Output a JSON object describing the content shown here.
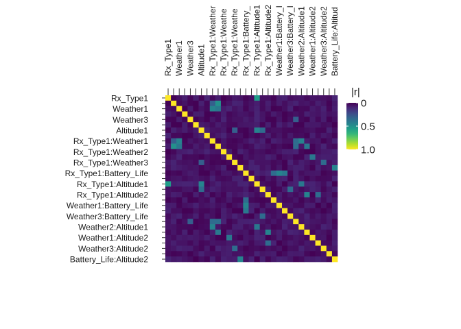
{
  "chart_data": {
    "type": "heatmap",
    "title": "",
    "xlabel": "",
    "ylabel": "",
    "row_labels": [
      "Rx_Type1",
      "",
      "Weather1",
      "",
      "Weather3",
      "",
      "Altitude1",
      "",
      "Rx_Type1:Weather1",
      "",
      "Rx_Type1:Weather2",
      "",
      "Rx_Type1:Weather3",
      "",
      "Rx_Type1:Battery_Life",
      "",
      "Rx_Type1:Altitude1",
      "",
      "Rx_Type1:Altitude2",
      "",
      "Weather1:Battery_Life",
      "",
      "Weather3:Battery_Life",
      "",
      "Weather2:Altitude1",
      "",
      "Weather1:Altitude2",
      "",
      "Weather3:Altitude2",
      "",
      "Battery_Life:Altitude2"
    ],
    "col_labels": [
      "Rx_Type1",
      "",
      "Weather1",
      "",
      "Weather3",
      "",
      "Altitude1",
      "",
      "Rx_Type1:Weather",
      "",
      "Rx_Type1:Weathe",
      "",
      "Rx_Type1:Weathe",
      "",
      "Rx_Type1:Battery_",
      "",
      "Rx_Type1:Altitude1",
      "",
      "Rx_Type1:Altitude2",
      "",
      "Weather1:Battery_l",
      "",
      "Weather3:Battery_l",
      "",
      "Weather2:Altitude1",
      "",
      "Weather1:Altitude2",
      "",
      "Weather3:Altitude2",
      "",
      "Battery_Life:Altitud"
    ],
    "legend": {
      "title": "|r|",
      "ticks": [
        "0",
        "0.5",
        "1.0"
      ],
      "values": [
        0,
        0.5,
        1.0
      ],
      "range": [
        0,
        1
      ],
      "colors": [
        "#440154",
        "#482878",
        "#3e4a89",
        "#31688e",
        "#26828e",
        "#1f9e89",
        "#35b779",
        "#6ece58",
        "#b5de2b",
        "#fde725"
      ]
    },
    "highlights": [
      {
        "row": 0,
        "col": 16,
        "value": 0.55
      },
      {
        "row": 16,
        "col": 0,
        "value": 0.55
      },
      {
        "row": 1,
        "col": 9,
        "value": 0.5
      },
      {
        "row": 9,
        "col": 1,
        "value": 0.5
      },
      {
        "row": 2,
        "col": 8,
        "value": 0.45
      },
      {
        "row": 8,
        "col": 2,
        "value": 0.45
      },
      {
        "row": 2,
        "col": 9,
        "value": 0.4
      },
      {
        "row": 9,
        "col": 2,
        "value": 0.4
      },
      {
        "row": 6,
        "col": 16,
        "value": 0.45
      },
      {
        "row": 16,
        "col": 6,
        "value": 0.45
      },
      {
        "row": 6,
        "col": 17,
        "value": 0.35
      },
      {
        "row": 17,
        "col": 6,
        "value": 0.35
      },
      {
        "row": 8,
        "col": 24,
        "value": 0.45
      },
      {
        "row": 24,
        "col": 8,
        "value": 0.45
      },
      {
        "row": 8,
        "col": 1,
        "value": 0.3
      },
      {
        "row": 1,
        "col": 8,
        "value": 0.3
      },
      {
        "row": 9,
        "col": 25,
        "value": 0.4
      },
      {
        "row": 25,
        "col": 9,
        "value": 0.4
      },
      {
        "row": 11,
        "col": 26,
        "value": 0.4
      },
      {
        "row": 26,
        "col": 11,
        "value": 0.4
      },
      {
        "row": 13,
        "col": 30,
        "value": 0.45
      },
      {
        "row": 30,
        "col": 13,
        "value": 0.45
      },
      {
        "row": 14,
        "col": 21,
        "value": 0.4
      },
      {
        "row": 21,
        "col": 14,
        "value": 0.4
      },
      {
        "row": 16,
        "col": 24,
        "value": 0.4
      },
      {
        "row": 24,
        "col": 16,
        "value": 0.4
      },
      {
        "row": 18,
        "col": 27,
        "value": 0.35
      },
      {
        "row": 27,
        "col": 18,
        "value": 0.35
      },
      {
        "row": 19,
        "col": 14,
        "value": 0.35
      },
      {
        "row": 14,
        "col": 19,
        "value": 0.35
      },
      {
        "row": 20,
        "col": 14,
        "value": 0.45
      },
      {
        "row": 14,
        "col": 20,
        "value": 0.45
      },
      {
        "row": 22,
        "col": 17,
        "value": 0.35
      },
      {
        "row": 17,
        "col": 22,
        "value": 0.35
      },
      {
        "row": 23,
        "col": 9,
        "value": 0.35
      },
      {
        "row": 9,
        "col": 23,
        "value": 0.35
      },
      {
        "row": 23,
        "col": 4,
        "value": 0.3
      },
      {
        "row": 4,
        "col": 23,
        "value": 0.3
      },
      {
        "row": 23,
        "col": 8,
        "value": 0.35
      },
      {
        "row": 8,
        "col": 23,
        "value": 0.35
      },
      {
        "row": 25,
        "col": 18,
        "value": 0.45
      },
      {
        "row": 18,
        "col": 25,
        "value": 0.45
      },
      {
        "row": 28,
        "col": 12,
        "value": 0.35
      },
      {
        "row": 12,
        "col": 28,
        "value": 0.35
      },
      {
        "row": 12,
        "col": 6,
        "value": 0.3
      },
      {
        "row": 6,
        "col": 12,
        "value": 0.3
      }
    ]
  }
}
